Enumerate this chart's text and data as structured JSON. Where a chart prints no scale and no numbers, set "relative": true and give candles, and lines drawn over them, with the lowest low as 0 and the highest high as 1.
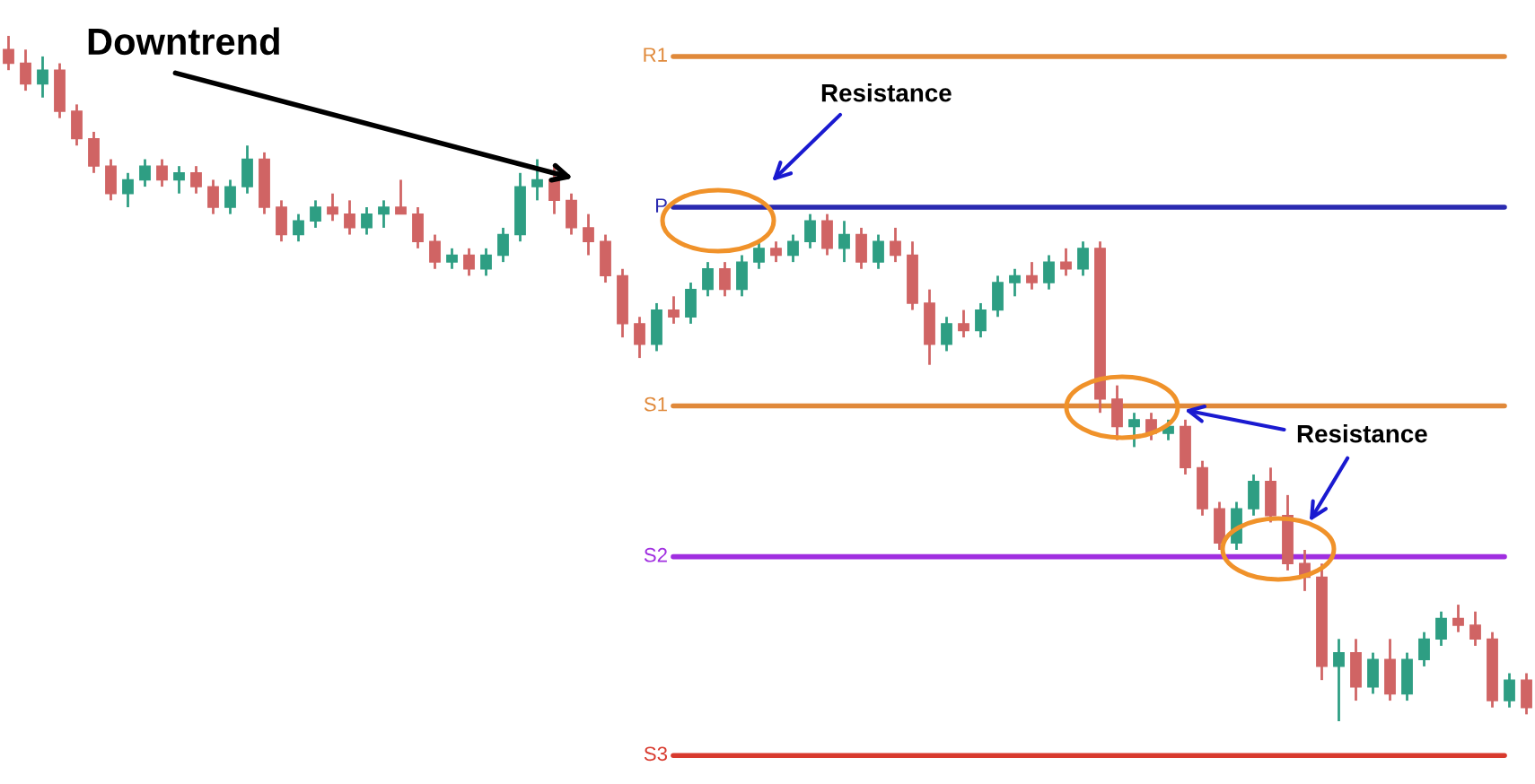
{
  "chart_data": {
    "type": "candlestick",
    "relative": true,
    "categories": [
      null,
      null,
      null,
      null,
      null,
      null,
      null,
      null,
      null,
      null,
      null,
      null,
      null,
      null,
      null,
      null,
      null,
      null,
      null,
      null,
      null,
      null,
      null,
      null,
      null,
      null,
      null,
      null,
      null,
      null,
      null,
      null,
      null,
      null,
      null,
      null,
      null,
      null,
      null,
      null,
      null,
      null,
      null,
      null,
      null,
      null,
      null,
      null,
      null,
      null,
      null,
      null,
      null,
      null,
      null,
      null,
      null,
      null,
      null,
      null,
      null,
      null,
      null,
      null,
      null,
      null,
      null,
      null,
      null,
      null,
      null,
      null,
      null,
      null,
      null,
      null,
      null,
      null,
      null,
      null,
      null,
      null,
      null,
      null,
      null,
      null,
      null,
      null,
      null,
      null
    ],
    "ohlc": [
      [
        0.98,
        1.0,
        0.95,
        0.96
      ],
      [
        0.96,
        0.98,
        0.92,
        0.93
      ],
      [
        0.93,
        0.97,
        0.91,
        0.95
      ],
      [
        0.95,
        0.96,
        0.88,
        0.89
      ],
      [
        0.89,
        0.9,
        0.84,
        0.85
      ],
      [
        0.85,
        0.86,
        0.8,
        0.81
      ],
      [
        0.81,
        0.82,
        0.76,
        0.77
      ],
      [
        0.77,
        0.8,
        0.75,
        0.79
      ],
      [
        0.79,
        0.82,
        0.78,
        0.81
      ],
      [
        0.81,
        0.82,
        0.78,
        0.79
      ],
      [
        0.79,
        0.81,
        0.77,
        0.8
      ],
      [
        0.8,
        0.81,
        0.77,
        0.78
      ],
      [
        0.78,
        0.79,
        0.74,
        0.75
      ],
      [
        0.75,
        0.79,
        0.74,
        0.78
      ],
      [
        0.78,
        0.84,
        0.77,
        0.82
      ],
      [
        0.82,
        0.83,
        0.74,
        0.75
      ],
      [
        0.75,
        0.76,
        0.7,
        0.71
      ],
      [
        0.71,
        0.74,
        0.7,
        0.73
      ],
      [
        0.73,
        0.76,
        0.72,
        0.75
      ],
      [
        0.75,
        0.77,
        0.73,
        0.74
      ],
      [
        0.74,
        0.76,
        0.71,
        0.72
      ],
      [
        0.72,
        0.75,
        0.71,
        0.74
      ],
      [
        0.74,
        0.76,
        0.72,
        0.75
      ],
      [
        0.75,
        0.79,
        0.74,
        0.74
      ],
      [
        0.74,
        0.75,
        0.69,
        0.7
      ],
      [
        0.7,
        0.71,
        0.66,
        0.67
      ],
      [
        0.67,
        0.69,
        0.66,
        0.68
      ],
      [
        0.68,
        0.69,
        0.65,
        0.66
      ],
      [
        0.66,
        0.69,
        0.65,
        0.68
      ],
      [
        0.68,
        0.72,
        0.67,
        0.71
      ],
      [
        0.71,
        0.8,
        0.7,
        0.78
      ],
      [
        0.78,
        0.82,
        0.76,
        0.79
      ],
      [
        0.79,
        0.81,
        0.74,
        0.76
      ],
      [
        0.76,
        0.77,
        0.71,
        0.72
      ],
      [
        0.72,
        0.74,
        0.68,
        0.7
      ],
      [
        0.7,
        0.71,
        0.64,
        0.65
      ],
      [
        0.65,
        0.66,
        0.56,
        0.58
      ],
      [
        0.58,
        0.59,
        0.53,
        0.55
      ],
      [
        0.55,
        0.61,
        0.54,
        0.6
      ],
      [
        0.6,
        0.62,
        0.58,
        0.59
      ],
      [
        0.59,
        0.64,
        0.58,
        0.63
      ],
      [
        0.63,
        0.67,
        0.62,
        0.66
      ],
      [
        0.66,
        0.67,
        0.62,
        0.63
      ],
      [
        0.63,
        0.68,
        0.62,
        0.67
      ],
      [
        0.67,
        0.7,
        0.66,
        0.69
      ],
      [
        0.69,
        0.7,
        0.67,
        0.68
      ],
      [
        0.68,
        0.71,
        0.67,
        0.7
      ],
      [
        0.7,
        0.74,
        0.69,
        0.73
      ],
      [
        0.73,
        0.74,
        0.68,
        0.69
      ],
      [
        0.69,
        0.73,
        0.67,
        0.71
      ],
      [
        0.71,
        0.72,
        0.66,
        0.67
      ],
      [
        0.67,
        0.71,
        0.66,
        0.7
      ],
      [
        0.7,
        0.72,
        0.67,
        0.68
      ],
      [
        0.68,
        0.7,
        0.6,
        0.61
      ],
      [
        0.61,
        0.63,
        0.52,
        0.55
      ],
      [
        0.55,
        0.59,
        0.54,
        0.58
      ],
      [
        0.58,
        0.6,
        0.56,
        0.57
      ],
      [
        0.57,
        0.61,
        0.56,
        0.6
      ],
      [
        0.6,
        0.65,
        0.59,
        0.64
      ],
      [
        0.64,
        0.66,
        0.62,
        0.65
      ],
      [
        0.65,
        0.67,
        0.63,
        0.64
      ],
      [
        0.64,
        0.68,
        0.63,
        0.67
      ],
      [
        0.67,
        0.69,
        0.65,
        0.66
      ],
      [
        0.66,
        0.7,
        0.65,
        0.69
      ],
      [
        0.69,
        0.7,
        0.45,
        0.47
      ],
      [
        0.47,
        0.49,
        0.41,
        0.43
      ],
      [
        0.43,
        0.45,
        0.4,
        0.44
      ],
      [
        0.44,
        0.45,
        0.41,
        0.42
      ],
      [
        0.42,
        0.44,
        0.41,
        0.43
      ],
      [
        0.43,
        0.44,
        0.36,
        0.37
      ],
      [
        0.37,
        0.38,
        0.3,
        0.31
      ],
      [
        0.31,
        0.32,
        0.25,
        0.26
      ],
      [
        0.26,
        0.32,
        0.25,
        0.31
      ],
      [
        0.31,
        0.36,
        0.3,
        0.35
      ],
      [
        0.35,
        0.37,
        0.29,
        0.3
      ],
      [
        0.3,
        0.33,
        0.22,
        0.23
      ],
      [
        0.23,
        0.25,
        0.19,
        0.21
      ],
      [
        0.21,
        0.23,
        0.06,
        0.08
      ],
      [
        0.08,
        0.12,
        0.0,
        0.1
      ],
      [
        0.1,
        0.12,
        0.03,
        0.05
      ],
      [
        0.05,
        0.1,
        0.04,
        0.09
      ],
      [
        0.09,
        0.12,
        0.03,
        0.04
      ],
      [
        0.04,
        0.1,
        0.03,
        0.09
      ],
      [
        0.09,
        0.13,
        0.08,
        0.12
      ],
      [
        0.12,
        0.16,
        0.11,
        0.15
      ],
      [
        0.15,
        0.17,
        0.13,
        0.14
      ],
      [
        0.14,
        0.16,
        0.11,
        0.12
      ],
      [
        0.12,
        0.13,
        0.02,
        0.03
      ],
      [
        0.03,
        0.07,
        0.02,
        0.06
      ],
      [
        0.06,
        0.07,
        0.01,
        0.02
      ]
    ],
    "ref_lines": [
      {
        "axis": "y",
        "value": 0.97,
        "label": "R1",
        "color": "#e0893a"
      },
      {
        "axis": "y",
        "value": 0.75,
        "label": "P",
        "color": "#2a2ab0"
      },
      {
        "axis": "y",
        "value": 0.46,
        "label": "S1",
        "color": "#e0893a"
      },
      {
        "axis": "y",
        "value": 0.24,
        "label": "S2",
        "color": "#a02ee0"
      },
      {
        "axis": "y",
        "value": -0.05,
        "label": "S3",
        "color": "#d83a2e"
      }
    ],
    "annotations": [
      "Downtrend",
      "Resistance",
      "Resistance"
    ]
  }
}
